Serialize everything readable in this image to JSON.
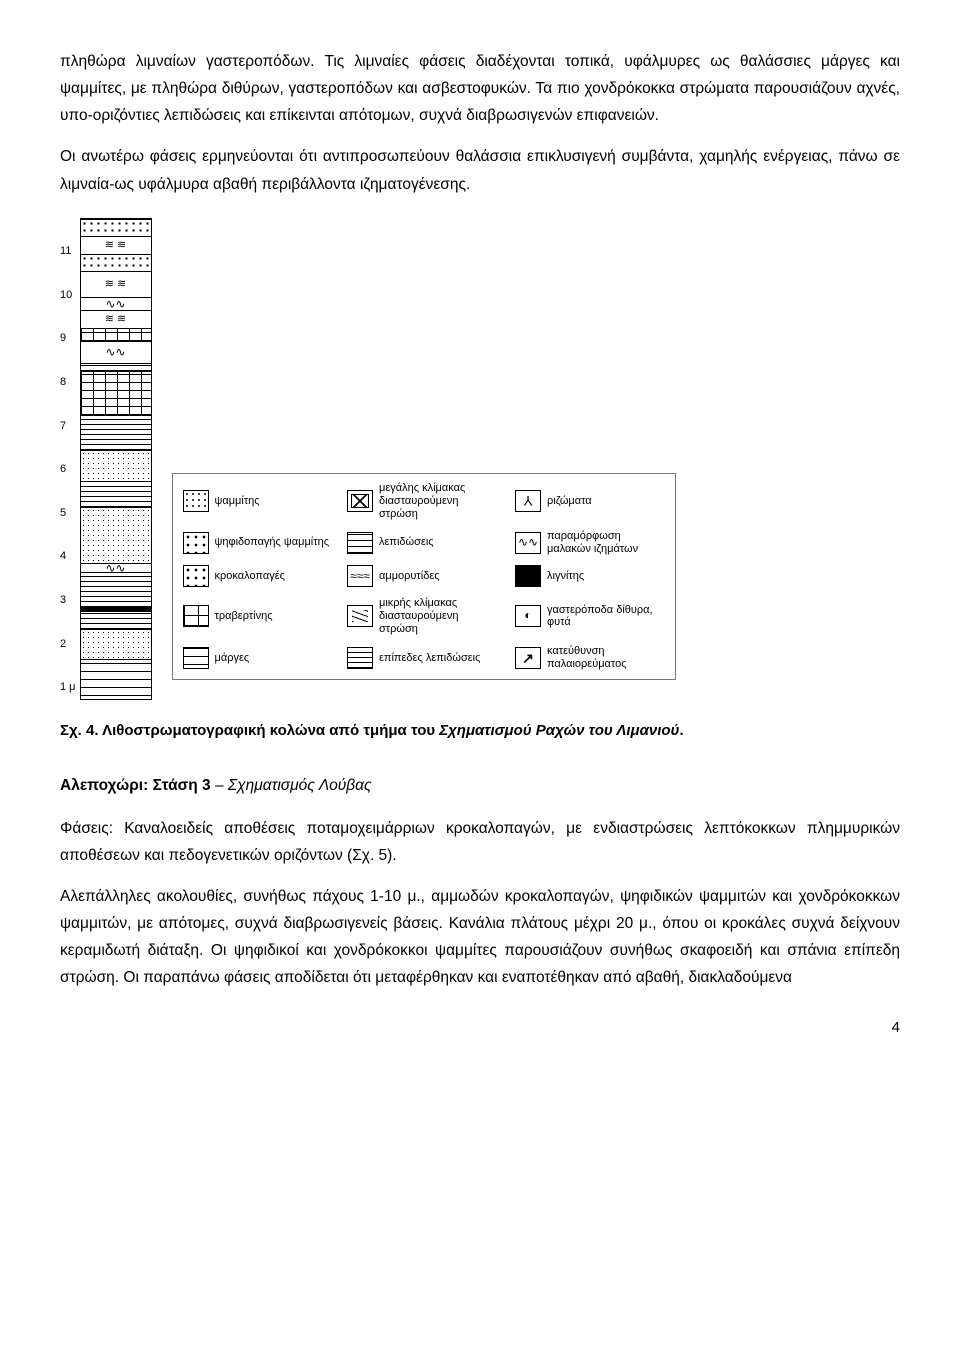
{
  "paragraphs": {
    "p1": "πληθώρα λιμναίων γαστεροπόδων. Τις λιμναίες φάσεις διαδέχονται τοπικά, υφάλμυρες ως θαλάσσιες μάργες και ψαμμίτες, με πληθώρα διθύρων, γαστεροπόδων και ασβεστοφυκών. Τα πιο χονδρόκοκκα στρώματα παρουσιάζουν αχνές, υπο-οριζόντιες λεπιδώσεις και επίκεινται απότομων, συχνά διαβρωσιγενών επιφανειών.",
    "p2": "Οι ανωτέρω φάσεις ερμηνεύονται ότι αντιπροσωπεύουν θαλάσσια επικλυσιγενή συμβάντα, χαμηλής ενέργειας, πάνω σε λιμναία-ως υφάλμυρα αβαθή περιβάλλοντα ιζηματογένεσης."
  },
  "column": {
    "scale_unit": "1 μ",
    "ticks": [
      "1 μ",
      "2",
      "3",
      "4",
      "5",
      "6",
      "7",
      "8",
      "9",
      "10",
      "11"
    ],
    "height_m": 11,
    "layers": [
      {
        "from": 0,
        "to": 0.9,
        "pattern": "pat-dash"
      },
      {
        "from": 0.9,
        "to": 1.6,
        "pattern": "pat-dots"
      },
      {
        "from": 1.6,
        "to": 2.0,
        "pattern": "pat-lines"
      },
      {
        "from": 2.0,
        "to": 2.1,
        "pattern": "pat-black"
      },
      {
        "from": 2.1,
        "to": 2.9,
        "pattern": "pat-lines"
      },
      {
        "from": 2.9,
        "to": 3.1,
        "pattern": "pat-deform"
      },
      {
        "from": 3.1,
        "to": 4.4,
        "pattern": "pat-dots"
      },
      {
        "from": 4.4,
        "to": 5.0,
        "pattern": "pat-lines"
      },
      {
        "from": 5.0,
        "to": 5.7,
        "pattern": "pat-dots"
      },
      {
        "from": 5.7,
        "to": 6.5,
        "pattern": "pat-lines"
      },
      {
        "from": 6.5,
        "to": 7.5,
        "pattern": "pat-bricks"
      },
      {
        "from": 7.5,
        "to": 7.7,
        "pattern": "pat-lines"
      },
      {
        "from": 7.7,
        "to": 8.2,
        "pattern": "pat-deform"
      },
      {
        "from": 8.2,
        "to": 8.5,
        "pattern": "pat-bricks"
      },
      {
        "from": 8.5,
        "to": 8.9,
        "pattern": "pat-waves"
      },
      {
        "from": 8.9,
        "to": 9.2,
        "pattern": "pat-deform"
      },
      {
        "from": 9.2,
        "to": 9.8,
        "pattern": "pat-waves"
      },
      {
        "from": 9.8,
        "to": 10.2,
        "pattern": "pat-big-dots"
      },
      {
        "from": 10.2,
        "to": 10.6,
        "pattern": "pat-waves"
      },
      {
        "from": 10.6,
        "to": 11.0,
        "pattern": "pat-big-dots"
      }
    ]
  },
  "legend": [
    {
      "pattern": "pat-dots",
      "label": "ψαμμίτης"
    },
    {
      "pattern": "pat-cross",
      "label": "μεγάλης κλίμακας διασταυρούμενη στρώση"
    },
    {
      "pattern": "pat-root",
      "label": "ριζώματα"
    },
    {
      "pattern": "pat-big-dots",
      "label": "ψηφιδοπαγής ψαμμίτης"
    },
    {
      "pattern": "pat-lines",
      "label": "λεπιδώσεις"
    },
    {
      "pattern": "pat-deform",
      "label": "παραμόρφωση μαλακών ιζημάτων"
    },
    {
      "pattern": "pat-big-dots",
      "label": "κροκαλοπαγές"
    },
    {
      "pattern": "pat-waves",
      "label": "αμμορυτίδες"
    },
    {
      "pattern": "pat-black",
      "label": "λιγνίτης"
    },
    {
      "pattern": "pat-bricks",
      "label": "τραβερτίνης"
    },
    {
      "pattern": "pat-small-cross",
      "label": "μικρής κλίμακας διασταυρούμενη στρώση"
    },
    {
      "pattern": "pat-shell",
      "label": "γαστερόποδα δίθυρα, φυτά"
    },
    {
      "pattern": "pat-dash",
      "label": "μάργες"
    },
    {
      "pattern": "pat-planar",
      "label": "επίπεδες λεπιδώσεις"
    },
    {
      "pattern": "pat-arrow",
      "label": "κατεύθυνση παλαιορεύματος"
    }
  ],
  "caption": {
    "prefix": "Σχ. 4. Λιθοστρωματογραφική κολώνα από τμήμα του ",
    "italic": "Σχηματισμού Ραχών του Λιμανιού",
    "suffix": "."
  },
  "section": {
    "location": "Αλεποχώρι: Στάση 3",
    "formation": "Σχηματισμός Λούβας",
    "p3": "Φάσεις: Καναλοειδείς αποθέσεις ποταμοχειμάρριων κροκαλοπαγών, με ενδιαστρώσεις λεπτόκοκκων πλημμυρικών αποθέσεων και πεδογενετικών οριζόντων (Σχ. 5).",
    "p4": "Αλεπάλληλες ακολουθίες, συνήθως πάχους 1-10 μ., αμμωδών κροκαλοπαγών, ψηφιδικών ψαμμιτών και χονδρόκοκκων ψαμμιτών, με απότομες, συχνά διαβρωσιγενείς βάσεις. Κανάλια πλάτους μέχρι 20 μ., όπου οι κροκάλες συχνά δείχνουν κεραμιδωτή διάταξη. Οι ψηφιδικοί και χονδρόκοκκοι ψαμμίτες παρουσιάζουν συνήθως σκαφοειδή και σπάνια επίπεδη στρώση. Οι παραπάνω φάσεις αποδίδεται ότι μεταφέρθηκαν και εναποτέθηκαν από αβαθή, διακλαδούμενα"
  },
  "page_number": "4"
}
